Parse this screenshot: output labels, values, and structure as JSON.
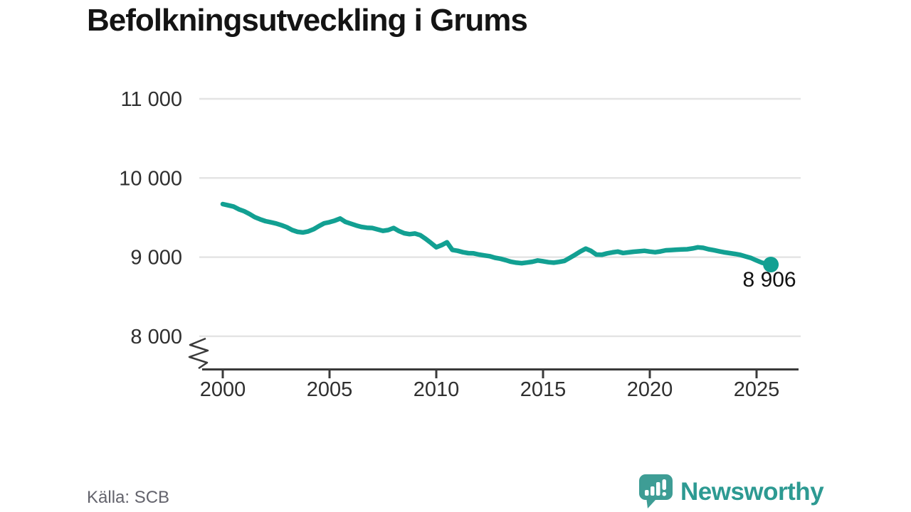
{
  "header": {
    "title": "Befolkningsutveckling i Grums"
  },
  "footer": {
    "source": "Källa: SCB",
    "brand": "Newsworthy"
  },
  "colors": {
    "line": "#12A092",
    "grid": "#E4E4E4",
    "axis": "#3A3A3A",
    "tick_label": "#2F2F2F",
    "annotation": "#111111",
    "logo_teal": "#3E9D95",
    "wordmark_teal": "#2D9A92"
  },
  "chart_data": {
    "type": "line",
    "title": "Befolkningsutveckling i Grums",
    "source": "Källa: SCB",
    "xlabel": "",
    "ylabel": "",
    "grid": "horizontal",
    "legend": "none",
    "axis_break_bottom": true,
    "xlim": [
      1999,
      2027
    ],
    "ylim": [
      8000,
      11000
    ],
    "x_ticks": [
      2000,
      2005,
      2010,
      2015,
      2020,
      2025
    ],
    "y_ticks": [
      {
        "value": 8000,
        "label": "8 000"
      },
      {
        "value": 9000,
        "label": "9 000"
      },
      {
        "value": 10000,
        "label": "10 000"
      },
      {
        "value": 11000,
        "label": "11 000"
      }
    ],
    "end_point": [
      2025.67,
      8906
    ],
    "end_label": "8 906",
    "series": [
      {
        "name": "Befolkning i Grums",
        "points": [
          [
            2000.0,
            9670
          ],
          [
            2000.25,
            9655
          ],
          [
            2000.5,
            9640
          ],
          [
            2000.75,
            9605
          ],
          [
            2001.0,
            9580
          ],
          [
            2001.25,
            9545
          ],
          [
            2001.5,
            9505
          ],
          [
            2001.75,
            9478
          ],
          [
            2002.0,
            9455
          ],
          [
            2002.25,
            9440
          ],
          [
            2002.5,
            9425
          ],
          [
            2002.75,
            9403
          ],
          [
            2003.0,
            9378
          ],
          [
            2003.25,
            9342
          ],
          [
            2003.5,
            9320
          ],
          [
            2003.75,
            9312
          ],
          [
            2004.0,
            9325
          ],
          [
            2004.25,
            9352
          ],
          [
            2004.5,
            9392
          ],
          [
            2004.75,
            9428
          ],
          [
            2005.0,
            9442
          ],
          [
            2005.25,
            9462
          ],
          [
            2005.5,
            9488
          ],
          [
            2005.75,
            9445
          ],
          [
            2006.0,
            9422
          ],
          [
            2006.25,
            9400
          ],
          [
            2006.5,
            9382
          ],
          [
            2006.75,
            9372
          ],
          [
            2007.0,
            9368
          ],
          [
            2007.25,
            9350
          ],
          [
            2007.5,
            9332
          ],
          [
            2007.75,
            9342
          ],
          [
            2008.0,
            9368
          ],
          [
            2008.25,
            9330
          ],
          [
            2008.5,
            9302
          ],
          [
            2008.75,
            9290
          ],
          [
            2009.0,
            9298
          ],
          [
            2009.25,
            9278
          ],
          [
            2009.5,
            9232
          ],
          [
            2009.75,
            9180
          ],
          [
            2010.0,
            9125
          ],
          [
            2010.25,
            9152
          ],
          [
            2010.5,
            9188
          ],
          [
            2010.75,
            9092
          ],
          [
            2011.0,
            9080
          ],
          [
            2011.25,
            9062
          ],
          [
            2011.5,
            9050
          ],
          [
            2011.75,
            9048
          ],
          [
            2012.0,
            9032
          ],
          [
            2012.25,
            9022
          ],
          [
            2012.5,
            9012
          ],
          [
            2012.75,
            8992
          ],
          [
            2013.0,
            8980
          ],
          [
            2013.25,
            8962
          ],
          [
            2013.5,
            8942
          ],
          [
            2013.75,
            8930
          ],
          [
            2014.0,
            8924
          ],
          [
            2014.25,
            8932
          ],
          [
            2014.5,
            8942
          ],
          [
            2014.75,
            8958
          ],
          [
            2015.0,
            8948
          ],
          [
            2015.25,
            8936
          ],
          [
            2015.5,
            8930
          ],
          [
            2015.75,
            8940
          ],
          [
            2016.0,
            8952
          ],
          [
            2016.25,
            8990
          ],
          [
            2016.5,
            9030
          ],
          [
            2016.75,
            9072
          ],
          [
            2017.0,
            9108
          ],
          [
            2017.25,
            9078
          ],
          [
            2017.5,
            9032
          ],
          [
            2017.75,
            9030
          ],
          [
            2018.0,
            9048
          ],
          [
            2018.25,
            9060
          ],
          [
            2018.5,
            9070
          ],
          [
            2018.75,
            9052
          ],
          [
            2019.0,
            9060
          ],
          [
            2019.25,
            9068
          ],
          [
            2019.5,
            9074
          ],
          [
            2019.75,
            9080
          ],
          [
            2020.0,
            9070
          ],
          [
            2020.25,
            9062
          ],
          [
            2020.5,
            9072
          ],
          [
            2020.75,
            9086
          ],
          [
            2021.0,
            9090
          ],
          [
            2021.25,
            9094
          ],
          [
            2021.5,
            9098
          ],
          [
            2021.75,
            9100
          ],
          [
            2022.0,
            9110
          ],
          [
            2022.25,
            9124
          ],
          [
            2022.5,
            9118
          ],
          [
            2022.75,
            9100
          ],
          [
            2023.0,
            9088
          ],
          [
            2023.25,
            9074
          ],
          [
            2023.5,
            9060
          ],
          [
            2023.75,
            9050
          ],
          [
            2024.0,
            9040
          ],
          [
            2024.25,
            9028
          ],
          [
            2024.5,
            9008
          ],
          [
            2024.75,
            8988
          ],
          [
            2025.0,
            8958
          ],
          [
            2025.25,
            8930
          ],
          [
            2025.67,
            8906
          ]
        ]
      }
    ]
  }
}
